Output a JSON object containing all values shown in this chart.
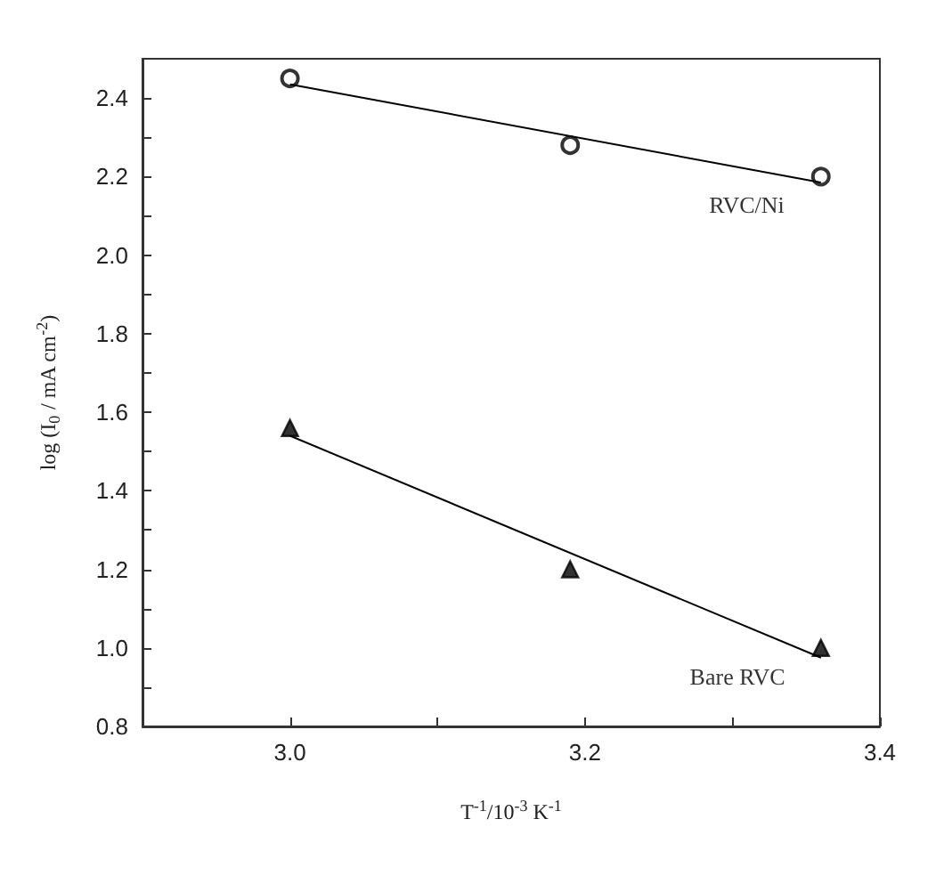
{
  "chart_data": {
    "type": "scatter",
    "xlabel": "T$^{-1}$/10$^{-3}$ K$^{-1}$",
    "ylabel": "log (I$_{0}$ / mA cm$^{-2}$)",
    "xlim": [
      2.9,
      3.4
    ],
    "xticks": [
      {
        "value": 3.0,
        "label": "3.0"
      },
      {
        "value": 3.1,
        "label": null
      },
      {
        "value": 3.2,
        "label": "3.2"
      },
      {
        "value": 3.3,
        "label": null
      },
      {
        "value": 3.4,
        "label": "3.4"
      }
    ],
    "ylim": [
      0.8,
      2.5
    ],
    "yticks": [
      {
        "value": 0.8,
        "label": "0.8"
      },
      {
        "value": 0.9,
        "label": null
      },
      {
        "value": 1.0,
        "label": "1.0"
      },
      {
        "value": 1.1,
        "label": null
      },
      {
        "value": 1.2,
        "label": "1.2"
      },
      {
        "value": 1.3,
        "label": null
      },
      {
        "value": 1.4,
        "label": "1.4"
      },
      {
        "value": 1.5,
        "label": null
      },
      {
        "value": 1.6,
        "label": "1.6"
      },
      {
        "value": 1.7,
        "label": null
      },
      {
        "value": 1.8,
        "label": "1.8"
      },
      {
        "value": 1.9,
        "label": null
      },
      {
        "value": 2.0,
        "label": "2.0"
      },
      {
        "value": 2.1,
        "label": null
      },
      {
        "value": 2.2,
        "label": "2.2"
      },
      {
        "value": 2.3,
        "label": null
      },
      {
        "value": 2.4,
        "label": "2.4"
      }
    ],
    "grid": false,
    "legend": false,
    "series": [
      {
        "name": "RVC/Ni",
        "color": "#000000",
        "marker": "circle",
        "x": [
          3.0,
          3.19,
          3.36
        ],
        "values": [
          2.45,
          2.28,
          2.2
        ]
      },
      {
        "type": "line",
        "color": "#000000",
        "marker": "none",
        "x": [
          3.0,
          3.36
        ],
        "values": [
          2.435,
          2.185
        ]
      },
      {
        "name": "Bare RVC",
        "color": "#000000",
        "marker": "triangle",
        "x": [
          3.0,
          3.19,
          3.36
        ],
        "values": [
          1.56,
          1.2,
          1.0
        ]
      },
      {
        "type": "line",
        "color": "#000000",
        "marker": "none",
        "x": [
          3.0,
          3.36
        ],
        "values": [
          1.54,
          0.975
        ]
      }
    ]
  }
}
